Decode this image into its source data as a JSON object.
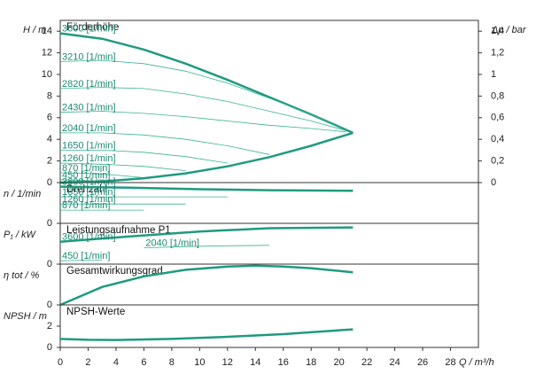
{
  "chart_data": [
    {
      "type": "line",
      "title": "Förderhöhe",
      "ylabel": "H / m",
      "y2label": "Δp / bar",
      "xlim": [
        0,
        30
      ],
      "ylim": [
        0,
        15
      ],
      "yticks": [
        0,
        2,
        4,
        6,
        8,
        10,
        12,
        14
      ],
      "y2lim": [
        0,
        1.5
      ],
      "y2ticks": [
        0,
        {
          "value": 0.2,
          "label": "0,2"
        },
        {
          "value": 0.4,
          "label": "0,4"
        },
        {
          "value": 0.6,
          "label": "0,6"
        },
        {
          "value": 0.8,
          "label": "0,8"
        },
        1,
        {
          "value": 1.2,
          "label": "1,2"
        },
        {
          "value": 1.4,
          "label": "1,4"
        }
      ],
      "series": [
        {
          "name": "3600 [1/min]",
          "color": "#1f9a80",
          "linewidth": 2.5,
          "x": [
            0,
            3,
            6,
            9,
            12,
            15,
            18,
            21
          ],
          "values": [
            13.8,
            13.3,
            12.3,
            11,
            9.5,
            7.9,
            6.3,
            4.6
          ]
        },
        {
          "name": "3210 [1/min]",
          "color": "#3bb394",
          "linewidth": 0.8,
          "x": [
            0,
            3,
            6,
            9,
            12,
            15,
            18,
            20.5
          ],
          "values": [
            11.2,
            11.3,
            11,
            10.3,
            9.2,
            7.8,
            6.3,
            4.8
          ]
        },
        {
          "name": "2820 [1/min]",
          "color": "#3bb394",
          "linewidth": 0.8,
          "x": [
            0,
            3,
            6,
            9,
            12,
            15,
            18,
            20.5
          ],
          "values": [
            8.7,
            8.8,
            8.7,
            8.2,
            7.5,
            6.6,
            5.7,
            4.8
          ]
        },
        {
          "name": "2430 [1/min]",
          "color": "#3bb394",
          "linewidth": 0.8,
          "x": [
            0,
            3,
            6,
            9,
            12,
            15,
            18,
            20.5
          ],
          "values": [
            6.5,
            6.6,
            6.4,
            6.1,
            5.7,
            5.3,
            5,
            4.7
          ]
        },
        {
          "name": "2040 [1/min]",
          "color": "#3bb394",
          "linewidth": 0.8,
          "x": [
            0,
            3,
            6,
            9,
            12,
            15
          ],
          "values": [
            4.6,
            4.6,
            4.4,
            4,
            3.4,
            2.6
          ]
        },
        {
          "name": "1650 [1/min]",
          "color": "#3bb394",
          "linewidth": 0.8,
          "x": [
            0,
            3,
            6,
            9,
            12
          ],
          "values": [
            3,
            3,
            2.8,
            2.4,
            1.8
          ]
        },
        {
          "name": "1260 [1/min]",
          "color": "#3bb394",
          "linewidth": 0.8,
          "x": [
            0,
            3,
            6,
            9
          ],
          "values": [
            1.8,
            1.7,
            1.5,
            1.1
          ]
        },
        {
          "name": "870 [1/min]",
          "color": "#3bb394",
          "linewidth": 0.8,
          "x": [
            0,
            2,
            4,
            6
          ],
          "values": [
            0.9,
            0.85,
            0.7,
            0.45
          ]
        },
        {
          "name": "450 [1/min]",
          "color": "#3bb394",
          "linewidth": 0.8,
          "x": [
            0,
            1,
            2,
            3
          ],
          "values": [
            0.25,
            0.22,
            0.18,
            0.12
          ]
        },
        {
          "color": "#1f9a80",
          "linewidth": 2.5,
          "x": [
            0,
            3,
            6,
            9,
            12,
            15,
            18,
            21
          ],
          "values": [
            0,
            0.1,
            0.4,
            0.85,
            1.5,
            2.35,
            3.4,
            4.6
          ]
        }
      ]
    },
    {
      "type": "line",
      "title": "Drehzahl",
      "ylabel": "n / 1/min",
      "xlim": [
        0,
        30
      ],
      "ylim": [
        0,
        4000
      ],
      "yticks": [
        0
      ],
      "series": [
        {
          "name": "3600 [1/min]",
          "color": "#1f9a80",
          "linewidth": 2.5,
          "x": [
            0,
            5,
            10,
            15,
            21
          ],
          "values": [
            3600,
            3500,
            3350,
            3250,
            3200
          ]
        },
        {
          "name": "1650 [1/min]",
          "color": "#3bb394",
          "linewidth": 0.8,
          "x": [
            0,
            12
          ],
          "values": [
            2600,
            2600
          ]
        },
        {
          "name": "1260 [1/min]",
          "color": "#3bb394",
          "linewidth": 0.8,
          "x": [
            0,
            9
          ],
          "values": [
            1900,
            1900
          ]
        },
        {
          "name": "870 [1/min]",
          "color": "#3bb394",
          "linewidth": 0.8,
          "x": [
            0,
            6
          ],
          "values": [
            1300,
            1300
          ]
        }
      ]
    },
    {
      "type": "line",
      "title": "Leistungsaufnahme P1",
      "ylabel": "P₁ / kW",
      "xlim": [
        0,
        30
      ],
      "ylim": [
        0,
        1
      ],
      "yticks": [
        0
      ],
      "series": [
        {
          "name": "3600 [1/min]",
          "color": "#1f9a80",
          "linewidth": 2.5,
          "x": [
            0,
            5,
            10,
            15,
            21
          ],
          "values": [
            0.55,
            0.68,
            0.8,
            0.88,
            0.9
          ]
        },
        {
          "name": "2040 [1/min]",
          "color": "#3bb394",
          "linewidth": 0.8,
          "x": [
            6,
            9,
            12,
            15
          ],
          "values": [
            0.4,
            0.43,
            0.45,
            0.46
          ]
        },
        {
          "name": "450 [1/min]",
          "color": "#3bb394",
          "linewidth": 0.8,
          "x": [
            0,
            1,
            2,
            3
          ],
          "values": [
            0.08,
            0.09,
            0.1,
            0.1
          ]
        }
      ]
    },
    {
      "type": "line",
      "title": "Gesamtwirkungsgrad",
      "ylabel": "η tot / %",
      "xlim": [
        0,
        30
      ],
      "ylim": [
        0,
        50
      ],
      "yticks": [
        0
      ],
      "series": [
        {
          "color": "#1f9a80",
          "linewidth": 2.5,
          "x": [
            0,
            3,
            6,
            9,
            12,
            14,
            16,
            18,
            21
          ],
          "values": [
            0,
            22,
            35,
            43,
            47,
            48,
            47,
            45,
            40
          ]
        }
      ]
    },
    {
      "type": "line",
      "title": "NPSH-Werte",
      "ylabel": "NPSH / m",
      "xlabel": "Q / m³/h",
      "xlim": [
        0,
        30
      ],
      "ylim": [
        0,
        4
      ],
      "yticks": [
        0,
        2
      ],
      "xticks": [
        0,
        2,
        4,
        6,
        8,
        10,
        12,
        14,
        16,
        18,
        20,
        22,
        24,
        26,
        28
      ],
      "series": [
        {
          "color": "#1f9a80",
          "linewidth": 2.5,
          "x": [
            0,
            2,
            4,
            8,
            12,
            16,
            21
          ],
          "values": [
            0.8,
            0.72,
            0.7,
            0.8,
            1,
            1.25,
            1.7
          ]
        }
      ]
    }
  ]
}
